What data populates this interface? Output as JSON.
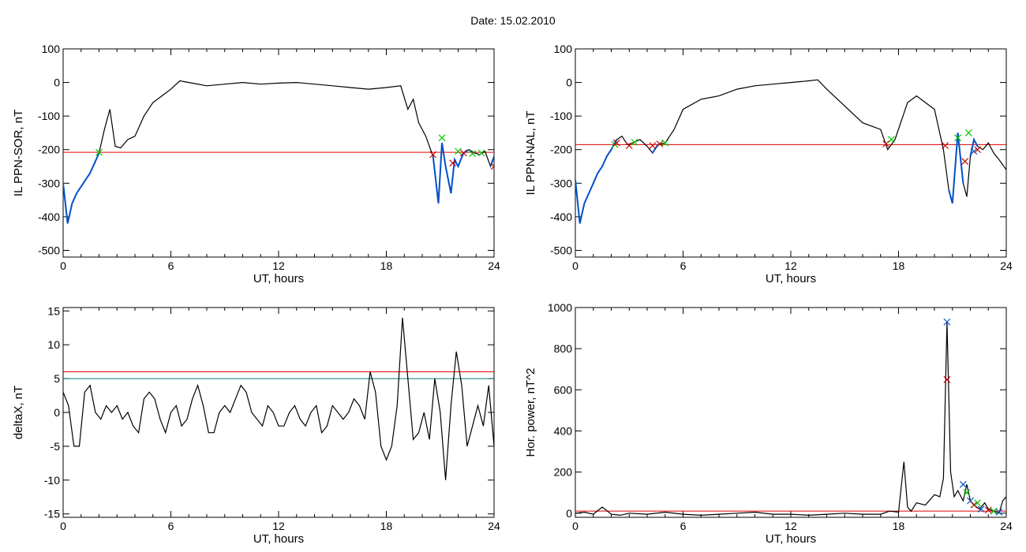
{
  "figure": {
    "title": "Date:  15.02.2010"
  },
  "colors": {
    "threshold": "#e00000",
    "threshold2": "#008080",
    "active": "#0050c8",
    "mark_green": "#00c800",
    "mark_red": "#c80000",
    "mark_blue": "#0050c8"
  },
  "chart_data": [
    {
      "id": "sor",
      "type": "line",
      "ylabel": "IL PPN-SOR, nT",
      "xlabel": "UT, hours",
      "xlim": [
        0,
        24
      ],
      "ylim": [
        -520,
        100
      ],
      "xticks": [
        "0",
        "6",
        "12",
        "18",
        "24"
      ],
      "yticks": [
        "100",
        "0",
        "-100",
        "-200",
        "-300",
        "-400",
        "-500"
      ],
      "ytick_values": [
        100,
        0,
        -100,
        -200,
        -300,
        -400,
        -500
      ],
      "thresholds": [
        -208
      ],
      "active_ranges": [
        [
          0,
          2.1
        ],
        [
          20.6,
          22.6
        ],
        [
          23.7,
          24
        ]
      ],
      "series": [
        {
          "x": [
            0,
            0.25,
            0.5,
            0.75,
            1,
            1.25,
            1.5,
            1.75,
            2,
            2.3,
            2.6,
            2.9,
            3.2,
            3.6,
            4,
            4.5,
            5,
            5.5,
            6,
            6.5,
            7,
            8,
            9,
            10,
            11,
            12,
            13,
            14,
            15,
            16,
            17,
            18,
            18.8,
            19.2,
            19.5,
            19.8,
            20.2,
            20.6,
            20.9,
            21.1,
            21.3,
            21.6,
            21.8,
            22,
            22.3,
            22.6,
            22.9,
            23.2,
            23.5,
            23.8,
            24
          ],
          "y": [
            -300,
            -420,
            -360,
            -330,
            -310,
            -290,
            -270,
            -240,
            -210,
            -140,
            -80,
            -190,
            -195,
            -170,
            -160,
            -100,
            -60,
            -40,
            -20,
            5,
            0,
            -10,
            -5,
            0,
            -5,
            -2,
            0,
            -5,
            -10,
            -15,
            -20,
            -15,
            -10,
            -80,
            -50,
            -120,
            -160,
            -220,
            -360,
            -180,
            -250,
            -330,
            -230,
            -250,
            -210,
            -200,
            -210,
            -215,
            -205,
            -250,
            -220
          ]
        }
      ],
      "markers": [
        {
          "x": 2.0,
          "y": -208,
          "color": "green"
        },
        {
          "x": 20.6,
          "y": -215,
          "color": "red"
        },
        {
          "x": 21.1,
          "y": -165,
          "color": "green"
        },
        {
          "x": 21.7,
          "y": -240,
          "color": "red"
        },
        {
          "x": 22.0,
          "y": -205,
          "color": "green"
        },
        {
          "x": 22.3,
          "y": -210,
          "color": "red"
        },
        {
          "x": 22.8,
          "y": -212,
          "color": "green"
        },
        {
          "x": 23.3,
          "y": -210,
          "color": "green"
        },
        {
          "x": 24.0,
          "y": -250,
          "color": "red"
        }
      ]
    },
    {
      "id": "nal",
      "type": "line",
      "ylabel": "IL PPN-NAL, nT",
      "xlabel": "UT, hours",
      "xlim": [
        0,
        24
      ],
      "ylim": [
        -520,
        100
      ],
      "xticks": [
        "0",
        "6",
        "12",
        "18",
        "24"
      ],
      "yticks": [
        "100",
        "0",
        "-100",
        "-200",
        "-300",
        "-400",
        "-500"
      ],
      "ytick_values": [
        100,
        0,
        -100,
        -200,
        -300,
        -400,
        -500
      ],
      "thresholds": [
        -185
      ],
      "active_ranges": [
        [
          0,
          2.3
        ],
        [
          4.3,
          4.7
        ],
        [
          17.3,
          17.6
        ],
        [
          20.6,
          21.6
        ],
        [
          21.9,
          22.6
        ]
      ],
      "series": [
        {
          "x": [
            0,
            0.25,
            0.5,
            0.75,
            1,
            1.25,
            1.5,
            1.75,
            2,
            2.3,
            2.6,
            2.9,
            3.2,
            3.6,
            4,
            4.3,
            4.6,
            5,
            5.5,
            6,
            7,
            8,
            9,
            10,
            11,
            12,
            13,
            13.5,
            14,
            15,
            16,
            17,
            17.4,
            17.8,
            18.5,
            19,
            19.5,
            20,
            20.5,
            20.8,
            21,
            21.3,
            21.6,
            21.8,
            22,
            22.2,
            22.4,
            22.7,
            23,
            23.3,
            23.6,
            24
          ],
          "y": [
            -290,
            -420,
            -360,
            -330,
            -300,
            -270,
            -250,
            -220,
            -200,
            -170,
            -160,
            -185,
            -180,
            -170,
            -190,
            -210,
            -185,
            -180,
            -140,
            -80,
            -50,
            -40,
            -20,
            -10,
            -5,
            0,
            5,
            8,
            -20,
            -70,
            -120,
            -140,
            -200,
            -170,
            -60,
            -40,
            -60,
            -80,
            -200,
            -320,
            -360,
            -150,
            -300,
            -340,
            -220,
            -170,
            -190,
            -200,
            -180,
            -210,
            -230,
            -260
          ]
        }
      ],
      "markers": [
        {
          "x": 2.2,
          "y": -185,
          "color": "green"
        },
        {
          "x": 2.3,
          "y": -180,
          "color": "red"
        },
        {
          "x": 3.0,
          "y": -188,
          "color": "red"
        },
        {
          "x": 3.3,
          "y": -178,
          "color": "green"
        },
        {
          "x": 4.3,
          "y": -188,
          "color": "red"
        },
        {
          "x": 4.7,
          "y": -183,
          "color": "red"
        },
        {
          "x": 5.0,
          "y": -180,
          "color": "green"
        },
        {
          "x": 17.3,
          "y": -183,
          "color": "red"
        },
        {
          "x": 17.6,
          "y": -170,
          "color": "green"
        },
        {
          "x": 20.6,
          "y": -188,
          "color": "red"
        },
        {
          "x": 21.3,
          "y": -165,
          "color": "green"
        },
        {
          "x": 21.7,
          "y": -235,
          "color": "red"
        },
        {
          "x": 21.9,
          "y": -150,
          "color": "green"
        },
        {
          "x": 22.2,
          "y": -205,
          "color": "blue"
        },
        {
          "x": 22.4,
          "y": -200,
          "color": "red"
        }
      ]
    },
    {
      "id": "deltax",
      "type": "line",
      "ylabel": "deltaX, nT",
      "xlabel": "UT, hours",
      "xlim": [
        0,
        24
      ],
      "ylim": [
        -15.5,
        15.5
      ],
      "xticks": [
        "0",
        "6",
        "12",
        "18",
        "24"
      ],
      "yticks": [
        "15",
        "10",
        "5",
        "0",
        "-5",
        "-10",
        "-15"
      ],
      "ytick_values": [
        15,
        10,
        5,
        0,
        -5,
        -10,
        -15
      ],
      "thresholds": [
        6,
        5
      ],
      "active_ranges": [],
      "series": [
        {
          "x": [
            0,
            0.3,
            0.6,
            0.9,
            1.2,
            1.5,
            1.8,
            2.1,
            2.4,
            2.7,
            3,
            3.3,
            3.6,
            3.9,
            4.2,
            4.5,
            4.8,
            5.1,
            5.4,
            5.7,
            6,
            6.3,
            6.6,
            6.9,
            7.2,
            7.5,
            7.8,
            8.1,
            8.4,
            8.7,
            9,
            9.3,
            9.6,
            9.9,
            10.2,
            10.5,
            10.8,
            11.1,
            11.4,
            11.7,
            12,
            12.3,
            12.6,
            12.9,
            13.2,
            13.5,
            13.8,
            14.1,
            14.4,
            14.7,
            15,
            15.3,
            15.6,
            15.9,
            16.2,
            16.5,
            16.8,
            17.1,
            17.4,
            17.7,
            18,
            18.3,
            18.6,
            18.9,
            19.2,
            19.5,
            19.8,
            20.1,
            20.4,
            20.7,
            21,
            21.3,
            21.6,
            21.9,
            22.2,
            22.5,
            22.8,
            23.1,
            23.4,
            23.7,
            24
          ],
          "y": [
            3,
            1,
            -5,
            -5,
            3,
            4,
            0,
            -1,
            1,
            0,
            1,
            -1,
            0,
            -2,
            -3,
            2,
            3,
            2,
            -1,
            -3,
            0,
            1,
            -2,
            -1,
            2,
            4,
            1,
            -3,
            -3,
            0,
            1,
            0,
            2,
            4,
            3,
            0,
            -1,
            -2,
            1,
            0,
            -2,
            -2,
            0,
            1,
            -1,
            -2,
            0,
            1,
            -3,
            -2,
            1,
            0,
            -1,
            0,
            2,
            1,
            -1,
            6,
            3,
            -5,
            -7,
            -5,
            1,
            14,
            5,
            -4,
            -3,
            0,
            -4,
            5,
            0,
            -10,
            1,
            9,
            4,
            -5,
            -2,
            1,
            -2,
            4,
            -5
          ]
        }
      ],
      "markers": []
    },
    {
      "id": "power",
      "type": "line",
      "ylabel": "Hor. power, nT^2",
      "xlabel": "UT, hours",
      "xlim": [
        0,
        24
      ],
      "ylim": [
        -20,
        1000
      ],
      "xticks": [
        "0",
        "6",
        "12",
        "18",
        "24"
      ],
      "yticks": [
        "1000",
        "800",
        "600",
        "400",
        "200",
        "0"
      ],
      "ytick_values": [
        1000,
        800,
        600,
        400,
        200,
        0
      ],
      "thresholds": [
        10
      ],
      "active_ranges": [],
      "series": [
        {
          "x": [
            0,
            0.5,
            1,
            1.5,
            2,
            2.5,
            3,
            4,
            5,
            6,
            7,
            8,
            9,
            10,
            11,
            12,
            13,
            14,
            15,
            16,
            17,
            17.5,
            18,
            18.3,
            18.5,
            18.7,
            19,
            19.5,
            20,
            20.3,
            20.5,
            20.7,
            20.9,
            21.1,
            21.3,
            21.6,
            21.8,
            22,
            22.2,
            22.5,
            22.8,
            23,
            23.3,
            23.6,
            23.8,
            24
          ],
          "y": [
            0,
            5,
            -5,
            30,
            -5,
            -10,
            0,
            -5,
            5,
            -5,
            -10,
            -5,
            0,
            5,
            -5,
            -5,
            -10,
            -5,
            0,
            -5,
            -5,
            10,
            5,
            250,
            30,
            10,
            50,
            40,
            90,
            80,
            170,
            930,
            200,
            80,
            110,
            60,
            140,
            60,
            40,
            20,
            50,
            20,
            10,
            0,
            60,
            80
          ]
        }
      ],
      "markers": [
        {
          "x": 20.7,
          "y": 930,
          "color": "blue"
        },
        {
          "x": 20.7,
          "y": 650,
          "color": "red"
        },
        {
          "x": 21.6,
          "y": 140,
          "color": "blue"
        },
        {
          "x": 21.8,
          "y": 100,
          "color": "green"
        },
        {
          "x": 22.0,
          "y": 60,
          "color": "blue"
        },
        {
          "x": 22.2,
          "y": 40,
          "color": "red"
        },
        {
          "x": 22.4,
          "y": 50,
          "color": "green"
        },
        {
          "x": 22.6,
          "y": 20,
          "color": "blue"
        },
        {
          "x": 23.0,
          "y": 15,
          "color": "red"
        },
        {
          "x": 23.3,
          "y": 10,
          "color": "green"
        },
        {
          "x": 23.6,
          "y": 5,
          "color": "blue"
        }
      ]
    }
  ]
}
